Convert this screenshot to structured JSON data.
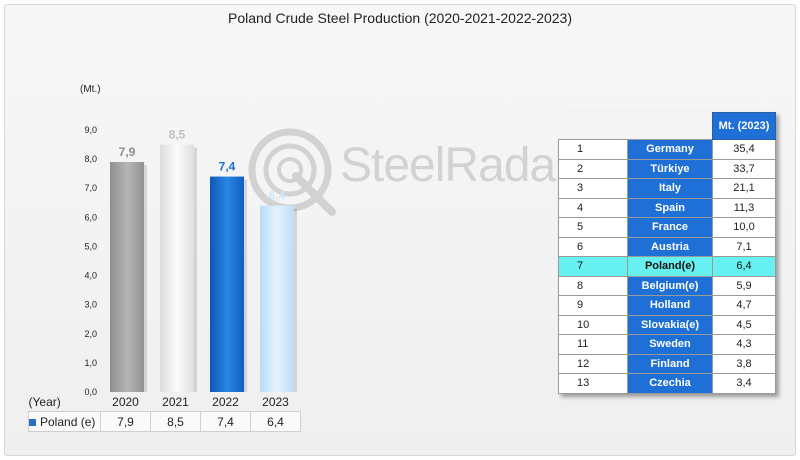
{
  "title": "Poland Crude Steel Production (2020-2021-2022-2023)",
  "unit_label": "(Mt.)",
  "watermark": "SteelRadar",
  "colors": {
    "bar_2020": "#a9a9a9",
    "bar_2021": "#ececec",
    "bar_2022": "#1b6fcf",
    "bar_2023": "#cde6fb",
    "table_country_bg": "#1e6fd6",
    "highlight": "#66f0f0"
  },
  "chart_data": {
    "type": "bar",
    "title": "Poland Crude Steel Production (2020-2021-2022-2023)",
    "ylabel": "(Mt.)",
    "xlabel": "(Year)",
    "categories": [
      "2020",
      "2021",
      "2022",
      "2023"
    ],
    "series": [
      {
        "name": "Poland (e)",
        "values": [
          7.9,
          8.5,
          7.4,
          6.4
        ]
      }
    ],
    "data_labels": [
      "7,9",
      "8,5",
      "7,4",
      "6,4"
    ],
    "ylim": [
      0,
      9
    ],
    "yticks": [
      "0,0",
      "1,0",
      "2,0",
      "3,0",
      "4,0",
      "5,0",
      "6,0",
      "7,0",
      "8,0",
      "9,0"
    ],
    "grid": false,
    "legend": "bottom-left data table"
  },
  "data_table": {
    "year_label": "(Year)",
    "series_label": "Poland (e)",
    "values": [
      "7,9",
      "8,5",
      "7,4",
      "6,4"
    ]
  },
  "ranking": {
    "header": "Mt. (2023)",
    "rows": [
      {
        "rank": "1",
        "country": "Germany",
        "value": "35,4"
      },
      {
        "rank": "2",
        "country": "Türkiye",
        "value": "33,7"
      },
      {
        "rank": "3",
        "country": "Italy",
        "value": "21,1"
      },
      {
        "rank": "4",
        "country": "Spain",
        "value": "11,3"
      },
      {
        "rank": "5",
        "country": "France",
        "value": "10,0"
      },
      {
        "rank": "6",
        "country": "Austria",
        "value": "7,1"
      },
      {
        "rank": "7",
        "country": "Poland(e)",
        "value": "6,4",
        "highlight": true
      },
      {
        "rank": "8",
        "country": "Belgium(e)",
        "value": "5,9"
      },
      {
        "rank": "9",
        "country": "Holland",
        "value": "4,7"
      },
      {
        "rank": "10",
        "country": "Slovakia(e)",
        "value": "4,5"
      },
      {
        "rank": "11",
        "country": "Sweden",
        "value": "4,3"
      },
      {
        "rank": "12",
        "country": "Finland",
        "value": "3,8"
      },
      {
        "rank": "13",
        "country": "Czechia",
        "value": "3,4"
      }
    ]
  }
}
